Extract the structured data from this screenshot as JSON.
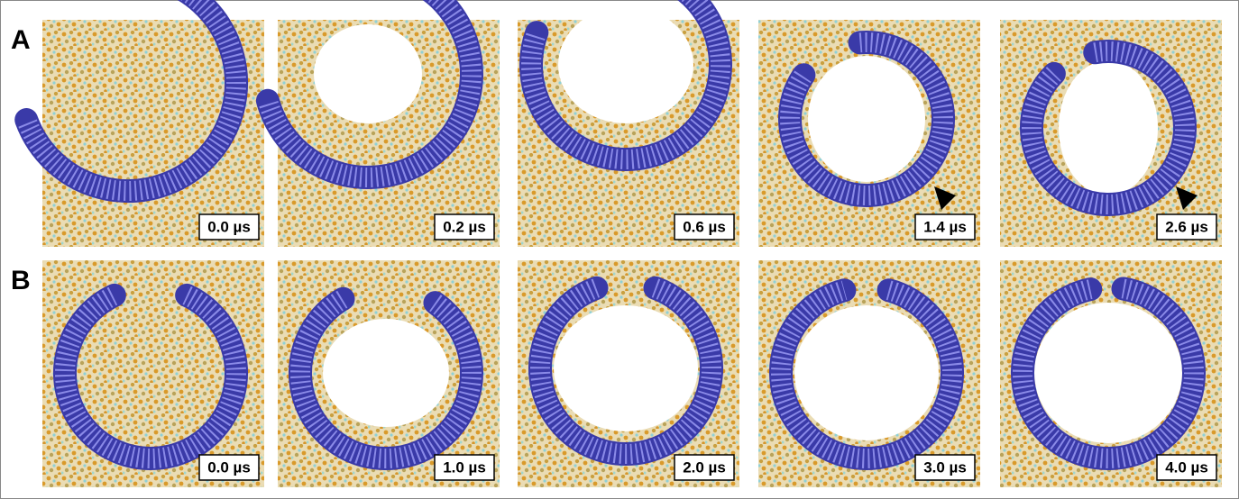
{
  "panels": [
    {
      "label": "A",
      "frames": [
        {
          "time": "0.0 µs"
        },
        {
          "time": "0.2 µs"
        },
        {
          "time": "0.6 µs"
        },
        {
          "time": "1.4 µs"
        },
        {
          "time": "2.6 µs"
        }
      ]
    },
    {
      "label": "B",
      "frames": [
        {
          "time": "0.0 µs"
        },
        {
          "time": "1.0 µs"
        },
        {
          "time": "2.0 µs"
        },
        {
          "time": "3.0 µs"
        },
        {
          "time": "4.0 µs"
        }
      ]
    }
  ]
}
